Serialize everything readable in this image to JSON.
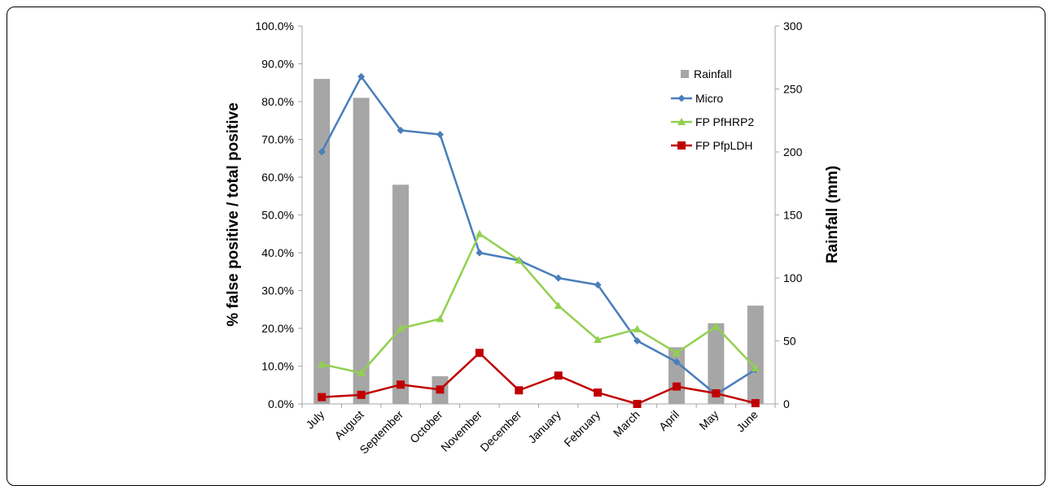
{
  "chart_data": {
    "type": "bar+line",
    "categories": [
      "July",
      "August",
      "September",
      "October",
      "November",
      "December",
      "January",
      "February",
      "March",
      "April",
      "May",
      "June"
    ],
    "title": "",
    "ylabel_left": "% false positive / total positive",
    "ylabel_right": "Rainfall (mm)",
    "ylim_left": [
      0,
      100
    ],
    "ylim_right": [
      0,
      300
    ],
    "yticks_left": [
      "0.0%",
      "10.0%",
      "20.0%",
      "30.0%",
      "40.0%",
      "50.0%",
      "60.0%",
      "70.0%",
      "80.0%",
      "90.0%",
      "100.0%"
    ],
    "yticks_right": [
      "0",
      "50",
      "100",
      "150",
      "200",
      "250",
      "300"
    ],
    "grid": false,
    "legend_position": "top-right",
    "bars": {
      "name": "Rainfall",
      "axis": "right",
      "color": "#a6a6a6",
      "values": [
        258,
        243,
        174,
        22,
        0,
        0,
        0,
        0,
        0,
        45,
        64,
        78
      ]
    },
    "series": [
      {
        "name": "Micro",
        "axis": "left",
        "color": "#4a7ebb",
        "marker": "diamond",
        "values": [
          66.7,
          86.6,
          72.4,
          71.3,
          40.0,
          38.0,
          33.3,
          31.5,
          16.7,
          11.1,
          2.5,
          9.1
        ]
      },
      {
        "name": "FP PfHRP2",
        "axis": "left",
        "color": "#92d050",
        "marker": "triangle",
        "values": [
          10.5,
          8.2,
          20.0,
          22.5,
          45.0,
          38.0,
          26.0,
          17.0,
          19.8,
          13.5,
          20.5,
          9.5
        ]
      },
      {
        "name": "FP PfpLDH",
        "axis": "left",
        "color": "#c00000",
        "marker": "square",
        "values": [
          1.8,
          2.4,
          5.1,
          3.8,
          13.5,
          3.6,
          7.5,
          3.0,
          0.0,
          4.6,
          2.8,
          0.2
        ]
      }
    ]
  }
}
